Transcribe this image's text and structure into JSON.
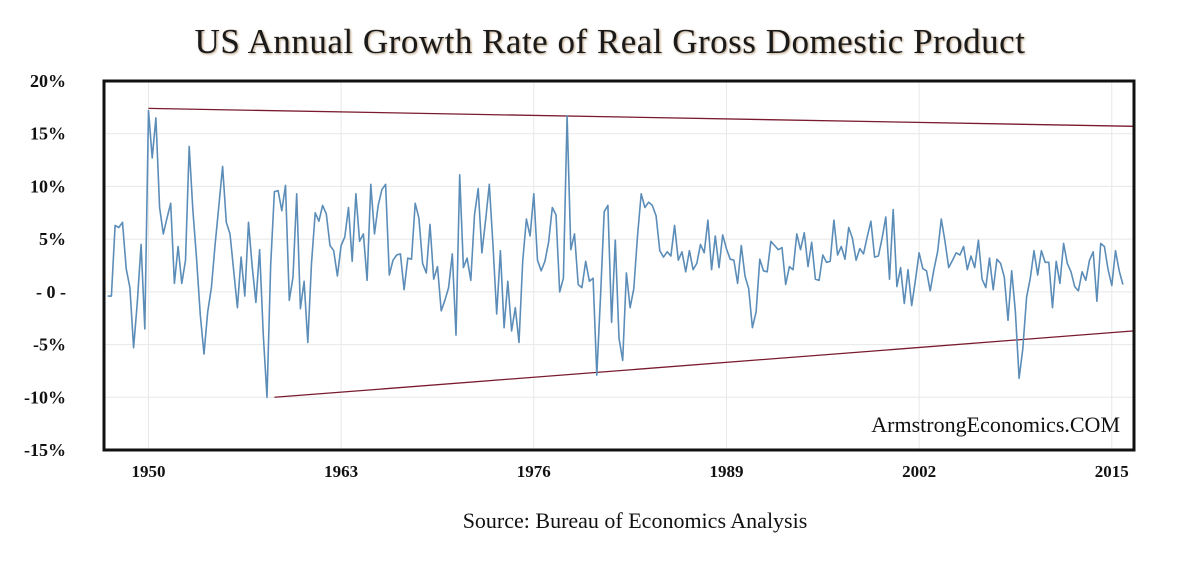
{
  "chart_data": {
    "type": "line",
    "title": "US Annual Growth Rate of Real Gross Domestic Product",
    "source": "Source: Bureau of Economics Analysis",
    "watermark": "ArmstrongEconomics.COM",
    "xlabel": "",
    "ylabel": "",
    "xlim": [
      1947,
      2016.5
    ],
    "ylim": [
      -15,
      20
    ],
    "y_ticks": [
      {
        "value": 20,
        "label": "20%"
      },
      {
        "value": 15,
        "label": "15%"
      },
      {
        "value": 10,
        "label": "10%"
      },
      {
        "value": 5,
        "label": "5%"
      },
      {
        "value": 0,
        "label": "- 0 -"
      },
      {
        "value": -5,
        "label": "-5%"
      },
      {
        "value": -10,
        "label": "-10%"
      },
      {
        "value": -15,
        "label": "-15%"
      }
    ],
    "x_ticks": [
      {
        "value": 1950,
        "label": "1950"
      },
      {
        "value": 1963,
        "label": "1963"
      },
      {
        "value": 1976,
        "label": "1976"
      },
      {
        "value": 1989,
        "label": "1989"
      },
      {
        "value": 2002,
        "label": "2002"
      },
      {
        "value": 2015,
        "label": "2015"
      }
    ],
    "grid": true,
    "colors": {
      "series": "#5b8db8",
      "trendlines": "#7a1a2e",
      "grid": "#e8e8e8",
      "frame": "#111111"
    },
    "trendlines": [
      {
        "name": "upper",
        "x": [
          1950,
          2016.5
        ],
        "y": [
          17.4,
          15.7
        ]
      },
      {
        "name": "lower",
        "x": [
          1958.5,
          2016.5
        ],
        "y": [
          -10.0,
          -3.7
        ]
      }
    ],
    "series": [
      {
        "values": [
          [
            1947.25,
            -0.4
          ],
          [
            1947.5,
            -0.4
          ],
          [
            1947.75,
            6.3
          ],
          [
            1948.0,
            6.1
          ],
          [
            1948.25,
            6.6
          ],
          [
            1948.5,
            2.2
          ],
          [
            1948.75,
            0.4
          ],
          [
            1949.0,
            -5.3
          ],
          [
            1949.25,
            -1.0
          ],
          [
            1949.5,
            4.5
          ],
          [
            1949.75,
            -3.5
          ],
          [
            1950.0,
            17.2
          ],
          [
            1950.25,
            12.7
          ],
          [
            1950.5,
            16.5
          ],
          [
            1950.75,
            8.0
          ],
          [
            1951.0,
            5.5
          ],
          [
            1951.25,
            7.0
          ],
          [
            1951.5,
            8.4
          ],
          [
            1951.75,
            0.8
          ],
          [
            1952.0,
            4.3
          ],
          [
            1952.25,
            0.8
          ],
          [
            1952.5,
            3.0
          ],
          [
            1952.75,
            13.8
          ],
          [
            1953.0,
            7.7
          ],
          [
            1953.25,
            3.1
          ],
          [
            1953.5,
            -2.2
          ],
          [
            1953.75,
            -5.9
          ],
          [
            1954.0,
            -1.9
          ],
          [
            1954.25,
            0.4
          ],
          [
            1954.5,
            4.6
          ],
          [
            1954.75,
            8.2
          ],
          [
            1955.0,
            11.9
          ],
          [
            1955.25,
            6.6
          ],
          [
            1955.5,
            5.5
          ],
          [
            1955.75,
            2.0
          ],
          [
            1956.0,
            -1.5
          ],
          [
            1956.25,
            3.3
          ],
          [
            1956.5,
            -0.4
          ],
          [
            1956.75,
            6.6
          ],
          [
            1957.0,
            2.4
          ],
          [
            1957.25,
            -1.0
          ],
          [
            1957.5,
            4.0
          ],
          [
            1957.75,
            -4.1
          ],
          [
            1958.0,
            -10.0
          ],
          [
            1958.25,
            2.6
          ],
          [
            1958.5,
            9.5
          ],
          [
            1958.75,
            9.6
          ],
          [
            1959.0,
            7.7
          ],
          [
            1959.25,
            10.1
          ],
          [
            1959.5,
            -0.8
          ],
          [
            1959.75,
            1.4
          ],
          [
            1960.0,
            9.3
          ],
          [
            1960.25,
            -1.6
          ],
          [
            1960.5,
            1.0
          ],
          [
            1960.75,
            -4.8
          ],
          [
            1961.0,
            2.7
          ],
          [
            1961.25,
            7.5
          ],
          [
            1961.5,
            6.7
          ],
          [
            1961.75,
            8.2
          ],
          [
            1962.0,
            7.4
          ],
          [
            1962.25,
            4.4
          ],
          [
            1962.5,
            3.9
          ],
          [
            1962.75,
            1.5
          ],
          [
            1963.0,
            4.4
          ],
          [
            1963.25,
            5.2
          ],
          [
            1963.5,
            8.0
          ],
          [
            1963.75,
            2.9
          ],
          [
            1964.0,
            9.3
          ],
          [
            1964.25,
            4.8
          ],
          [
            1964.5,
            5.5
          ],
          [
            1964.75,
            1.1
          ],
          [
            1965.0,
            10.2
          ],
          [
            1965.25,
            5.5
          ],
          [
            1965.5,
            8.2
          ],
          [
            1965.75,
            9.7
          ],
          [
            1966.0,
            10.2
          ],
          [
            1966.25,
            1.6
          ],
          [
            1966.5,
            3.0
          ],
          [
            1966.75,
            3.5
          ],
          [
            1967.0,
            3.6
          ],
          [
            1967.25,
            0.2
          ],
          [
            1967.5,
            3.2
          ],
          [
            1967.75,
            3.1
          ],
          [
            1968.0,
            8.4
          ],
          [
            1968.25,
            7.0
          ],
          [
            1968.5,
            2.7
          ],
          [
            1968.75,
            1.8
          ],
          [
            1969.0,
            6.4
          ],
          [
            1969.25,
            1.2
          ],
          [
            1969.5,
            2.4
          ],
          [
            1969.75,
            -1.8
          ],
          [
            1970.0,
            -0.8
          ],
          [
            1970.25,
            0.4
          ],
          [
            1970.5,
            3.6
          ],
          [
            1970.75,
            -4.1
          ],
          [
            1971.0,
            11.1
          ],
          [
            1971.25,
            2.3
          ],
          [
            1971.5,
            3.2
          ],
          [
            1971.75,
            1.1
          ],
          [
            1972.0,
            7.3
          ],
          [
            1972.25,
            9.8
          ],
          [
            1972.5,
            3.7
          ],
          [
            1972.75,
            6.8
          ],
          [
            1973.0,
            10.2
          ],
          [
            1973.25,
            4.4
          ],
          [
            1973.5,
            -2.1
          ],
          [
            1973.75,
            3.9
          ],
          [
            1974.0,
            -3.4
          ],
          [
            1974.25,
            1.0
          ],
          [
            1974.5,
            -3.7
          ],
          [
            1974.75,
            -1.5
          ],
          [
            1975.0,
            -4.8
          ],
          [
            1975.25,
            2.9
          ],
          [
            1975.5,
            6.9
          ],
          [
            1975.75,
            5.3
          ],
          [
            1976.0,
            9.3
          ],
          [
            1976.25,
            3.0
          ],
          [
            1976.5,
            2.0
          ],
          [
            1976.75,
            2.9
          ],
          [
            1977.0,
            4.7
          ],
          [
            1977.25,
            8.0
          ],
          [
            1977.5,
            7.3
          ],
          [
            1977.75,
            0.0
          ],
          [
            1978.0,
            1.3
          ],
          [
            1978.25,
            16.7
          ],
          [
            1978.5,
            4.0
          ],
          [
            1978.75,
            5.5
          ],
          [
            1979.0,
            0.7
          ],
          [
            1979.25,
            0.4
          ],
          [
            1979.5,
            2.9
          ],
          [
            1979.75,
            1.0
          ],
          [
            1980.0,
            1.3
          ],
          [
            1980.25,
            -7.9
          ],
          [
            1980.5,
            -0.5
          ],
          [
            1980.75,
            7.6
          ],
          [
            1981.0,
            8.2
          ],
          [
            1981.25,
            -2.9
          ],
          [
            1981.5,
            4.9
          ],
          [
            1981.75,
            -4.4
          ],
          [
            1982.0,
            -6.5
          ],
          [
            1982.25,
            1.8
          ],
          [
            1982.5,
            -1.5
          ],
          [
            1982.75,
            0.3
          ],
          [
            1983.0,
            5.3
          ],
          [
            1983.25,
            9.3
          ],
          [
            1983.5,
            8.0
          ],
          [
            1983.75,
            8.5
          ],
          [
            1984.0,
            8.2
          ],
          [
            1984.25,
            7.2
          ],
          [
            1984.5,
            3.9
          ],
          [
            1984.75,
            3.3
          ],
          [
            1985.0,
            3.8
          ],
          [
            1985.25,
            3.4
          ],
          [
            1985.5,
            6.3
          ],
          [
            1985.75,
            3.0
          ],
          [
            1986.0,
            3.8
          ],
          [
            1986.25,
            1.9
          ],
          [
            1986.5,
            3.9
          ],
          [
            1986.75,
            2.1
          ],
          [
            1987.0,
            2.7
          ],
          [
            1987.25,
            4.5
          ],
          [
            1987.5,
            3.7
          ],
          [
            1987.75,
            6.8
          ],
          [
            1988.0,
            2.1
          ],
          [
            1988.25,
            5.3
          ],
          [
            1988.5,
            2.3
          ],
          [
            1988.75,
            5.4
          ],
          [
            1989.0,
            4.1
          ],
          [
            1989.25,
            3.1
          ],
          [
            1989.5,
            3.0
          ],
          [
            1989.75,
            0.8
          ],
          [
            1990.0,
            4.4
          ],
          [
            1990.25,
            1.5
          ],
          [
            1990.5,
            0.3
          ],
          [
            1990.75,
            -3.4
          ],
          [
            1991.0,
            -1.9
          ],
          [
            1991.25,
            3.1
          ],
          [
            1991.5,
            2.0
          ],
          [
            1991.75,
            1.9
          ],
          [
            1992.0,
            4.8
          ],
          [
            1992.25,
            4.4
          ],
          [
            1992.5,
            4.0
          ],
          [
            1992.75,
            4.2
          ],
          [
            1993.0,
            0.7
          ],
          [
            1993.25,
            2.4
          ],
          [
            1993.5,
            2.1
          ],
          [
            1993.75,
            5.5
          ],
          [
            1994.0,
            4.0
          ],
          [
            1994.25,
            5.6
          ],
          [
            1994.5,
            2.4
          ],
          [
            1994.75,
            4.7
          ],
          [
            1995.0,
            1.2
          ],
          [
            1995.25,
            1.1
          ],
          [
            1995.5,
            3.5
          ],
          [
            1995.75,
            2.8
          ],
          [
            1996.0,
            2.9
          ],
          [
            1996.25,
            6.8
          ],
          [
            1996.5,
            3.5
          ],
          [
            1996.75,
            4.3
          ],
          [
            1997.0,
            3.1
          ],
          [
            1997.25,
            6.1
          ],
          [
            1997.5,
            5.1
          ],
          [
            1997.75,
            3.0
          ],
          [
            1998.0,
            4.1
          ],
          [
            1998.25,
            3.6
          ],
          [
            1998.5,
            5.2
          ],
          [
            1998.75,
            6.7
          ],
          [
            1999.0,
            3.3
          ],
          [
            1999.25,
            3.4
          ],
          [
            1999.5,
            5.1
          ],
          [
            1999.75,
            7.1
          ],
          [
            2000.0,
            1.2
          ],
          [
            2000.25,
            7.8
          ],
          [
            2000.5,
            0.5
          ],
          [
            2000.75,
            2.3
          ],
          [
            2001.0,
            -1.1
          ],
          [
            2001.25,
            2.1
          ],
          [
            2001.5,
            -1.3
          ],
          [
            2001.75,
            1.1
          ],
          [
            2002.0,
            3.7
          ],
          [
            2002.25,
            2.2
          ],
          [
            2002.5,
            2.0
          ],
          [
            2002.75,
            0.1
          ],
          [
            2003.0,
            2.1
          ],
          [
            2003.25,
            3.8
          ],
          [
            2003.5,
            6.9
          ],
          [
            2003.75,
            4.8
          ],
          [
            2004.0,
            2.3
          ],
          [
            2004.25,
            3.0
          ],
          [
            2004.5,
            3.7
          ],
          [
            2004.75,
            3.5
          ],
          [
            2005.0,
            4.3
          ],
          [
            2005.25,
            2.1
          ],
          [
            2005.5,
            3.4
          ],
          [
            2005.75,
            2.3
          ],
          [
            2006.0,
            4.9
          ],
          [
            2006.25,
            1.2
          ],
          [
            2006.5,
            0.4
          ],
          [
            2006.75,
            3.2
          ],
          [
            2007.0,
            0.2
          ],
          [
            2007.25,
            3.1
          ],
          [
            2007.5,
            2.7
          ],
          [
            2007.75,
            1.4
          ],
          [
            2008.0,
            -2.7
          ],
          [
            2008.25,
            2.0
          ],
          [
            2008.5,
            -1.9
          ],
          [
            2008.75,
            -8.2
          ],
          [
            2009.0,
            -5.4
          ],
          [
            2009.25,
            -0.5
          ],
          [
            2009.5,
            1.3
          ],
          [
            2009.75,
            3.9
          ],
          [
            2010.0,
            1.6
          ],
          [
            2010.25,
            3.9
          ],
          [
            2010.5,
            2.8
          ],
          [
            2010.75,
            2.8
          ],
          [
            2011.0,
            -1.5
          ],
          [
            2011.25,
            2.9
          ],
          [
            2011.5,
            0.8
          ],
          [
            2011.75,
            4.6
          ],
          [
            2012.0,
            2.7
          ],
          [
            2012.25,
            1.9
          ],
          [
            2012.5,
            0.5
          ],
          [
            2012.75,
            0.1
          ],
          [
            2013.0,
            1.9
          ],
          [
            2013.25,
            1.1
          ],
          [
            2013.5,
            3.0
          ],
          [
            2013.75,
            3.8
          ],
          [
            2014.0,
            -0.9
          ],
          [
            2014.25,
            4.6
          ],
          [
            2014.5,
            4.3
          ],
          [
            2014.75,
            2.1
          ],
          [
            2015.0,
            0.6
          ],
          [
            2015.25,
            3.9
          ],
          [
            2015.5,
            2.0
          ],
          [
            2015.75,
            0.7
          ]
        ]
      }
    ]
  }
}
